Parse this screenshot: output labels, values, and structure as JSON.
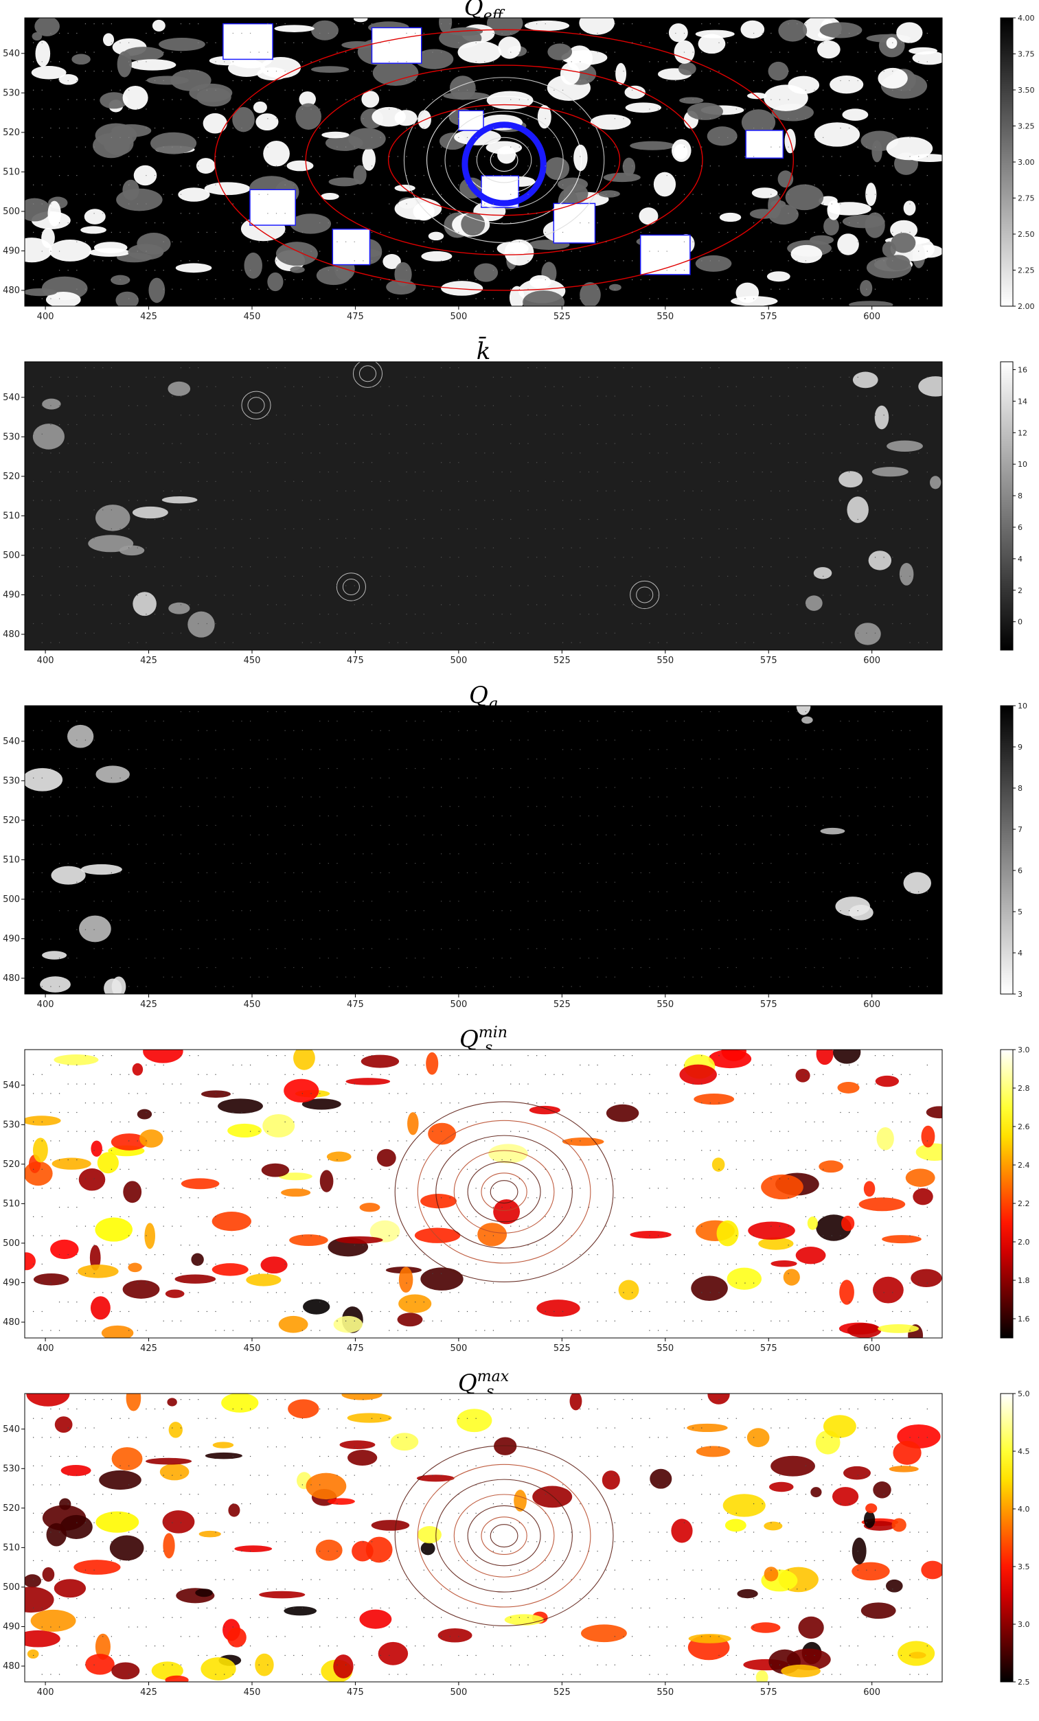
{
  "chart_data": [
    {
      "type": "heatmap",
      "title": "Q",
      "title_sub": "eff",
      "colormap": "gray_r",
      "xlim": [
        395,
        617
      ],
      "ylim": [
        476,
        549
      ],
      "xticks": [
        "400",
        "425",
        "450",
        "475",
        "500",
        "525",
        "550",
        "575",
        "600"
      ],
      "yticks": [
        "480",
        "490",
        "500",
        "510",
        "520",
        "530",
        "540"
      ],
      "cbar_range": [
        2.0,
        4.0
      ],
      "cbar_ticks": [
        "2.00",
        "2.25",
        "2.50",
        "2.75",
        "3.00",
        "3.25",
        "3.50",
        "3.75",
        "4.00"
      ],
      "overlay_colors": [
        "#e00000",
        "#1a1aff"
      ],
      "background": "#000000"
    },
    {
      "type": "heatmap",
      "title": "k̄",
      "title_sub": "",
      "colormap": "gray",
      "xlim": [
        395,
        617
      ],
      "ylim": [
        476,
        549
      ],
      "xticks": [
        "400",
        "425",
        "450",
        "475",
        "500",
        "525",
        "550",
        "575",
        "600"
      ],
      "yticks": [
        "480",
        "490",
        "500",
        "510",
        "520",
        "530",
        "540"
      ],
      "cbar_range": [
        -1.8,
        16.5
      ],
      "cbar_ticks": [
        "0",
        "2",
        "4",
        "6",
        "8",
        "10",
        "12",
        "14",
        "16"
      ],
      "background": "#1e1e1e"
    },
    {
      "type": "heatmap",
      "title": "Q",
      "title_sub": "g",
      "colormap": "gray_r",
      "xlim": [
        395,
        617
      ],
      "ylim": [
        476,
        549
      ],
      "xticks": [
        "400",
        "425",
        "450",
        "475",
        "500",
        "525",
        "550",
        "575",
        "600"
      ],
      "yticks": [
        "480",
        "490",
        "500",
        "510",
        "520",
        "530",
        "540"
      ],
      "cbar_range": [
        3,
        10
      ],
      "cbar_ticks": [
        "3",
        "4",
        "5",
        "6",
        "7",
        "8",
        "9",
        "10"
      ],
      "background": "#000000"
    },
    {
      "type": "heatmap",
      "title": "Q",
      "title_sub": "s",
      "title_sup": "min",
      "colormap": "hot",
      "xlim": [
        395,
        617
      ],
      "ylim": [
        476,
        549
      ],
      "xticks": [
        "400",
        "425",
        "450",
        "475",
        "500",
        "525",
        "550",
        "575",
        "600"
      ],
      "yticks": [
        "480",
        "490",
        "500",
        "510",
        "520",
        "530",
        "540"
      ],
      "cbar_range": [
        1.5,
        3.0
      ],
      "cbar_ticks": [
        "1.6",
        "1.8",
        "2.0",
        "2.2",
        "2.4",
        "2.6",
        "2.8",
        "3.0"
      ],
      "background": "#ffffff"
    },
    {
      "type": "heatmap",
      "title": "Q",
      "title_sub": "s",
      "title_sup": "max",
      "colormap": "hot",
      "xlim": [
        395,
        617
      ],
      "ylim": [
        476,
        549
      ],
      "xticks": [
        "400",
        "425",
        "450",
        "475",
        "500",
        "525",
        "550",
        "575",
        "600"
      ],
      "yticks": [
        "480",
        "490",
        "500",
        "510",
        "520",
        "530",
        "540"
      ],
      "cbar_range": [
        2.5,
        5.0
      ],
      "cbar_ticks": [
        "2.5",
        "3.0",
        "3.5",
        "4.0",
        "4.5",
        "5.0"
      ],
      "background": "#ffffff"
    }
  ]
}
